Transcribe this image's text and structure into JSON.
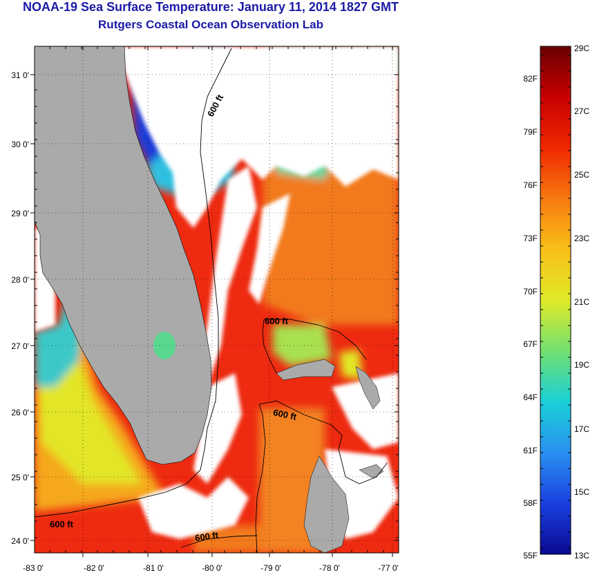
{
  "header": {
    "title": "NOAA-19 Sea Surface Temperature:  January 11, 2014 1827 GMT",
    "subtitle": "Rutgers Coastal Ocean Observation Lab"
  },
  "map": {
    "lat_labels": [
      "31 0'",
      "30 0'",
      "29 0'",
      "28 0'",
      "27 0'",
      "26 0'",
      "25 0'",
      "24 0'"
    ],
    "lon_labels": [
      "-83 0'",
      "-82 0'",
      "-81 0'",
      "-80 0'",
      "-79 0'",
      "-78 0'",
      "-77 0'"
    ],
    "contour_labels": [
      "600 ft",
      "600 ft",
      "600 ft",
      "600 ft",
      "600 ft"
    ],
    "colors": {
      "land": "#aaaaaa",
      "cloud": "#ffffff",
      "warm": "#ee2a10",
      "orange": "#f27a1a",
      "yellow": "#e2e628",
      "cyan": "#2ec0e0",
      "blue": "#1a3ad8"
    }
  },
  "colorbar": {
    "fahrenheit_labels": [
      "82F",
      "79F",
      "76F",
      "73F",
      "70F",
      "67F",
      "64F",
      "61F",
      "58F",
      "55F"
    ],
    "celsius_labels": [
      "29C",
      "27C",
      "25C",
      "23C",
      "21C",
      "19C",
      "17C",
      "15C",
      "13C"
    ],
    "gradient_stops": [
      "#6a0000",
      "#c80000",
      "#f02800",
      "#f77a10",
      "#f9c018",
      "#dfea28",
      "#72e070",
      "#1ad0d8",
      "#2a90f0",
      "#1a40e0",
      "#0a0a90"
    ]
  }
}
